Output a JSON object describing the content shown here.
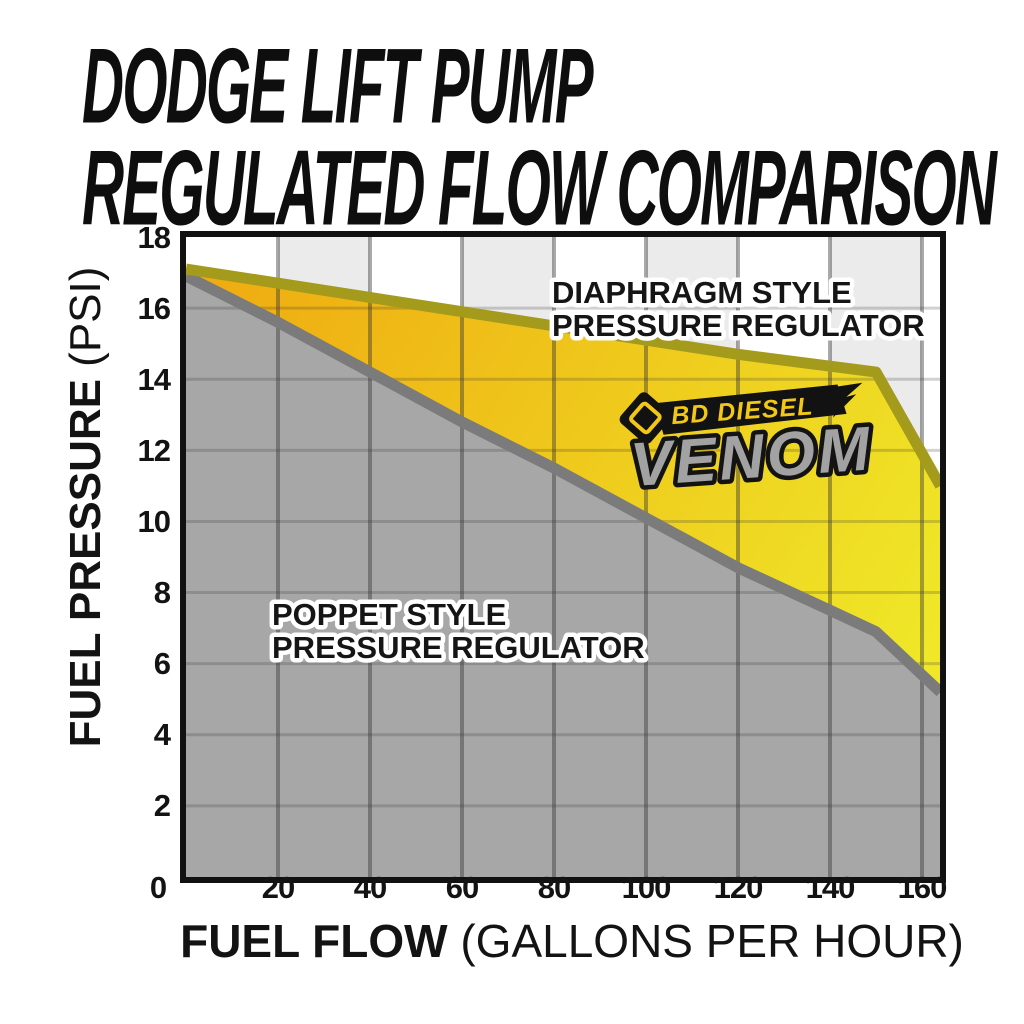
{
  "title": {
    "line1": "DODGE LIFT PUMP",
    "line2": "REGULATED FLOW COMPARISON"
  },
  "chart_data": {
    "type": "area",
    "title": "Dodge Lift Pump Regulated Flow Comparison",
    "xlabel": "FUEL FLOW (GALLONS PER HOUR)",
    "ylabel": "FUEL PRESSURE (PSI)",
    "xlabel_parts": {
      "bold": "FUEL FLOW",
      "regular": " (GALLONS PER HOUR)"
    },
    "ylabel_parts": {
      "bold": "FUEL PRESSURE",
      "regular": " (PSI)"
    },
    "xlim": [
      0,
      164
    ],
    "ylim": [
      0,
      18
    ],
    "x_ticks": [
      "0",
      "20",
      "40",
      "60",
      "80",
      "100",
      "120",
      "140",
      "160"
    ],
    "y_ticks": [
      "0",
      "2",
      "4",
      "6",
      "8",
      "10",
      "12",
      "14",
      "16",
      "18"
    ],
    "grid": true,
    "legend_position": "inline-annotations",
    "background_stripe_color": "#ebebeb",
    "series": [
      {
        "name": "Diaphragm Style Pressure Regulator (BD Diesel Venom)",
        "line_color": "#a49b1d",
        "fill": "yellow-gradient",
        "fill_colors": [
          "#efa910",
          "#efe728"
        ],
        "points": [
          [
            0,
            17.1
          ],
          [
            30,
            16.5
          ],
          [
            60,
            15.9
          ],
          [
            90,
            15.3
          ],
          [
            120,
            14.7
          ],
          [
            150,
            14.2
          ],
          [
            164,
            11.0
          ]
        ]
      },
      {
        "name": "Poppet Style Pressure Regulator",
        "line_color": "#7b7b7b",
        "fill": "#a7a7a7",
        "points": [
          [
            0,
            16.9
          ],
          [
            20,
            15.6
          ],
          [
            40,
            14.2
          ],
          [
            60,
            12.8
          ],
          [
            80,
            11.5
          ],
          [
            100,
            10.1
          ],
          [
            120,
            8.7
          ],
          [
            140,
            7.5
          ],
          [
            150,
            6.9
          ],
          [
            164,
            5.2
          ]
        ]
      }
    ],
    "annotations": [
      {
        "line1": "DIAPHRAGM STYLE",
        "line2": "PRESSURE REGULATOR"
      },
      {
        "line1": "POPPET STYLE",
        "line2": "PRESSURE REGULATOR"
      }
    ]
  },
  "logo": {
    "brand": "BD DIESEL",
    "product": "VENOM"
  }
}
